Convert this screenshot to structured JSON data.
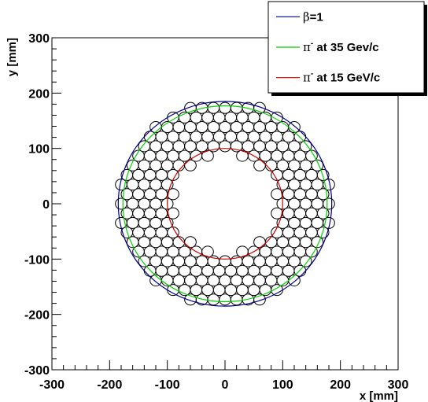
{
  "chart_data": {
    "type": "scatter",
    "title": "",
    "xlabel": "x [mm]",
    "ylabel": "y [mm]",
    "xlim": [
      -300,
      300
    ],
    "ylim": [
      -300,
      300
    ],
    "xticks": [
      -300,
      -200,
      -100,
      0,
      100,
      200,
      300
    ],
    "yticks": [
      -300,
      -200,
      -100,
      0,
      100,
      200,
      300
    ],
    "grid": false,
    "legend_position": "top-right",
    "tile_lattice": {
      "description": "hexagonal array of circular tiles",
      "pitch_mm": 20,
      "tile_diameter_mm": 20,
      "inner_radius_mm": 90,
      "outer_radius_mm": 190,
      "tile_color": "#000000"
    },
    "series": [
      {
        "name": "β=1",
        "legend_symbol": "β",
        "legend_suffix": "=1",
        "radius_mm": 185,
        "color": "#00008b"
      },
      {
        "name": "π⁻ at 35 Gev/c",
        "legend_symbol": "π",
        "legend_sup": "-",
        "legend_suffix": " at 35 Gev/c",
        "radius_mm": 177,
        "color": "#00d000"
      },
      {
        "name": "π⁻ at 15 GeV/c",
        "legend_symbol": "π",
        "legend_sup": "-",
        "legend_suffix": " at 15 GeV/c",
        "radius_mm": 100,
        "color": "#d00000"
      }
    ]
  }
}
